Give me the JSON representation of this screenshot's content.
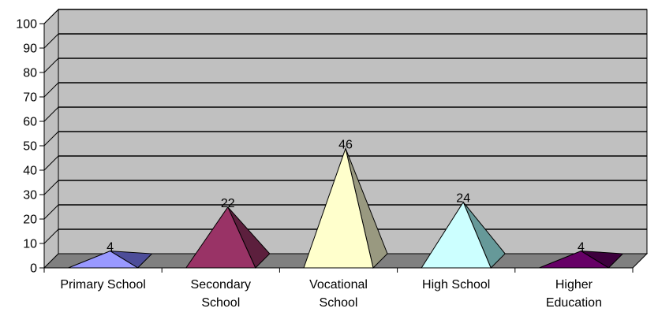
{
  "chart_data": {
    "type": "bar",
    "shape": "pyramid-3d",
    "categories": [
      [
        "Primary School"
      ],
      [
        "Secondary",
        "School"
      ],
      [
        "Vocational",
        "School"
      ],
      [
        "High School"
      ],
      [
        "Higher",
        "Education"
      ]
    ],
    "values": [
      4,
      22,
      46,
      24,
      4
    ],
    "value_labels": [
      "4",
      "22",
      "46",
      "24",
      "4"
    ],
    "ylim": [
      0,
      100
    ],
    "yticks": [
      0,
      10,
      20,
      30,
      40,
      50,
      60,
      70,
      80,
      90,
      100
    ],
    "ytick_labels": [
      "0",
      "10",
      "20",
      "30",
      "40",
      "50",
      "60",
      "70",
      "80",
      "90",
      "100"
    ],
    "grid": true,
    "legend": "none",
    "colors": {
      "wall": "#c0c0c0",
      "floor": "#808080",
      "bars": [
        {
          "front": "#9999ff",
          "side": "#4d4d99"
        },
        {
          "front": "#993366",
          "side": "#5c1f3d"
        },
        {
          "front": "#ffffcc",
          "side": "#999980"
        },
        {
          "front": "#ccffff",
          "side": "#669999"
        },
        {
          "front": "#660066",
          "side": "#3d003d"
        }
      ]
    }
  }
}
